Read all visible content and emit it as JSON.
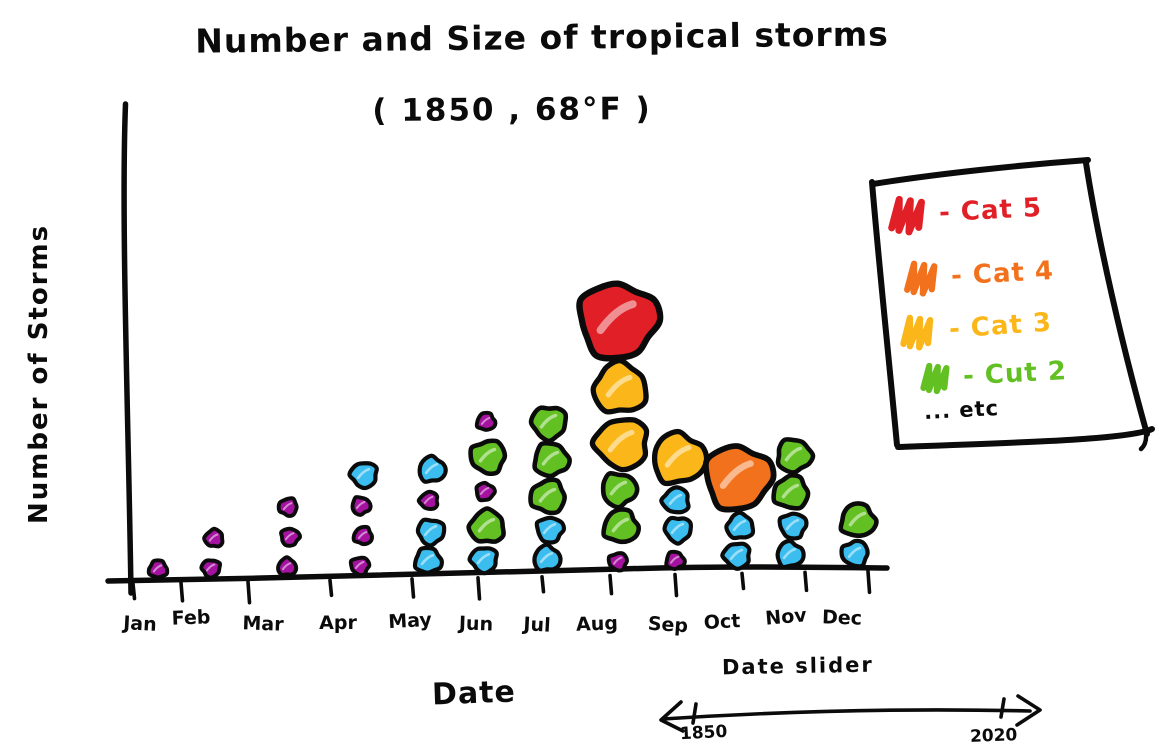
{
  "chart_data": {
    "type": "bubble",
    "title": "Number and Size of tropical storms",
    "subtitle": "( 1850 , 68°F )",
    "xlabel": "Date",
    "ylabel": "Number of Storms",
    "grid": false,
    "months": [
      "Jan",
      "Feb",
      "Mar",
      "Apr",
      "May",
      "Jun",
      "Jul",
      "Aug",
      "Sep",
      "Oct",
      "Nov",
      "Dec"
    ],
    "y_axis_tick_labels": "none shown (count implied by stacked bubbles)",
    "size_encoding": "bubble size and color encode storm category (bigger = stronger)",
    "stack_order": "bottom_to_top",
    "storms_by_month": [
      {
        "month": "Jan",
        "count": 1,
        "storms": [
          "magenta"
        ]
      },
      {
        "month": "Feb",
        "count": 2,
        "storms": [
          "magenta",
          "magenta"
        ]
      },
      {
        "month": "Mar",
        "count": 3,
        "storms": [
          "magenta",
          "magenta",
          "magenta"
        ]
      },
      {
        "month": "Apr",
        "count": 4,
        "storms": [
          "magenta",
          "magenta",
          "magenta",
          "blue"
        ]
      },
      {
        "month": "May",
        "count": 4,
        "storms": [
          "blue",
          "blue",
          "magenta",
          "blue"
        ]
      },
      {
        "month": "Jun",
        "count": 5,
        "storms": [
          "blue",
          "green",
          "magenta",
          "green",
          "magenta"
        ]
      },
      {
        "month": "Jul",
        "count": 5,
        "storms": [
          "blue",
          "blue",
          "green",
          "green",
          "green"
        ]
      },
      {
        "month": "Aug",
        "count": 6,
        "storms": [
          "magenta",
          "green",
          "green",
          "yellow",
          "yellow",
          "red"
        ]
      },
      {
        "month": "Sep",
        "count": 4,
        "storms": [
          "magenta",
          "blue",
          "blue",
          "yellow"
        ]
      },
      {
        "month": "Oct",
        "count": 3,
        "storms": [
          "blue",
          "blue",
          "orange"
        ]
      },
      {
        "month": "Nov",
        "count": 4,
        "storms": [
          "blue",
          "blue",
          "green",
          "green"
        ]
      },
      {
        "month": "Dec",
        "count": 2,
        "storms": [
          "blue",
          "green"
        ]
      }
    ],
    "counts_per_month": [
      1,
      2,
      3,
      4,
      4,
      5,
      5,
      6,
      4,
      3,
      4,
      2
    ],
    "legend": {
      "position": "top-right",
      "entries": [
        {
          "label": "Cat 5",
          "display": "- Cat 5",
          "color": "#e01f26",
          "key": "red"
        },
        {
          "label": "Cat 4",
          "display": "- Cat 4",
          "color": "#f2711c",
          "key": "orange"
        },
        {
          "label": "Cat 3",
          "display": "- Cat 3",
          "color": "#fbb71a",
          "key": "yellow"
        },
        {
          "label": "Cat 2",
          "display": "- Cut 2",
          "color": "#62c022",
          "key": "green"
        },
        {
          "label": "etc",
          "display": "... etc",
          "color": "#0b0b0b",
          "key": "etc"
        }
      ]
    },
    "unlabeled_bubble_colors": [
      {
        "key": "blue",
        "color": "#3bbeef",
        "note": "smaller storms, below Cat 2"
      },
      {
        "key": "magenta",
        "color": "#a512a0",
        "note": "smallest storms"
      }
    ],
    "colors": {
      "red": "#e01f26",
      "orange": "#f2711c",
      "yellow": "#fbb71a",
      "green": "#62c022",
      "blue": "#3bbeef",
      "magenta": "#a512a0",
      "ink": "#0b0b0b"
    },
    "bubble_radii": {
      "magenta": 9,
      "blue": 13,
      "green": 17,
      "yellow": 26,
      "orange": 33,
      "red": 39
    },
    "slider": {
      "label": "Date slider",
      "min": "1850",
      "max": "2020"
    }
  }
}
